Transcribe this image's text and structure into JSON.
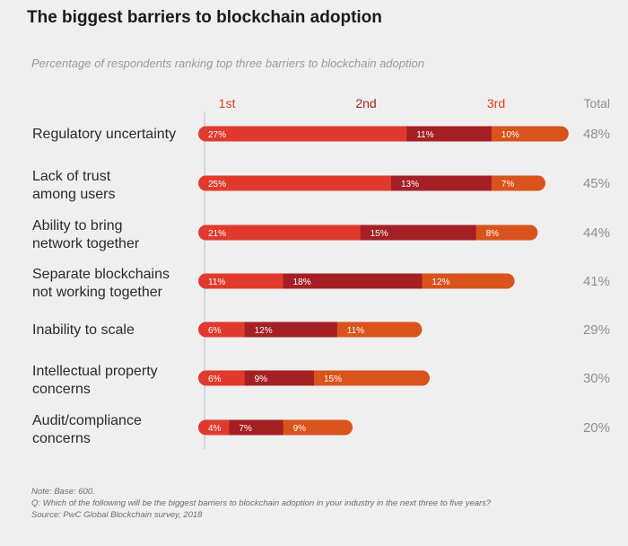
{
  "title": "The biggest barriers to blockchain adoption",
  "subtitle": "Percentage of respondents ranking top three barriers to blockchain adoption",
  "colors": {
    "first": "#e03a2e",
    "second": "#a42024",
    "third": "#d9531c",
    "rank_header": "#d9392c",
    "total_text": "#8f8f8f",
    "label_text": "#2a2a2a",
    "axis": "#bbbbbb"
  },
  "chart_data": {
    "type": "bar",
    "stacked": true,
    "orientation": "horizontal",
    "title": "The biggest barriers to blockchain adoption",
    "subtitle": "Percentage of respondents ranking top three barriers to blockchain adoption",
    "legend": [
      "1st",
      "2nd",
      "3rd"
    ],
    "total_header": "Total",
    "categories": [
      [
        "Regulatory uncertainty"
      ],
      [
        "Lack of trust",
        "among users"
      ],
      [
        "Ability to bring",
        "network together"
      ],
      [
        "Separate blockchains",
        "not working together"
      ],
      [
        "Inability to scale"
      ],
      [
        "Intellectual property",
        "concerns"
      ],
      [
        "Audit/compliance",
        "concerns"
      ]
    ],
    "series": [
      {
        "name": "1st",
        "values": [
          27,
          25,
          21,
          11,
          6,
          6,
          4
        ]
      },
      {
        "name": "2nd",
        "values": [
          11,
          13,
          15,
          18,
          12,
          9,
          7
        ]
      },
      {
        "name": "3rd",
        "values": [
          10,
          7,
          8,
          12,
          11,
          15,
          9
        ]
      }
    ],
    "totals": [
      "48%",
      "45%",
      "44%",
      "41%",
      "29%",
      "30%",
      "20%"
    ],
    "xlim": [
      0,
      48
    ]
  },
  "notes": {
    "line1": "Note: Base: 600.",
    "line2": "Q: Which of the following will be the biggest barriers to blockchain adoption in your industry in the next three to five years?",
    "line3": "Source: PwC Global Blockchain survey, 2018"
  }
}
